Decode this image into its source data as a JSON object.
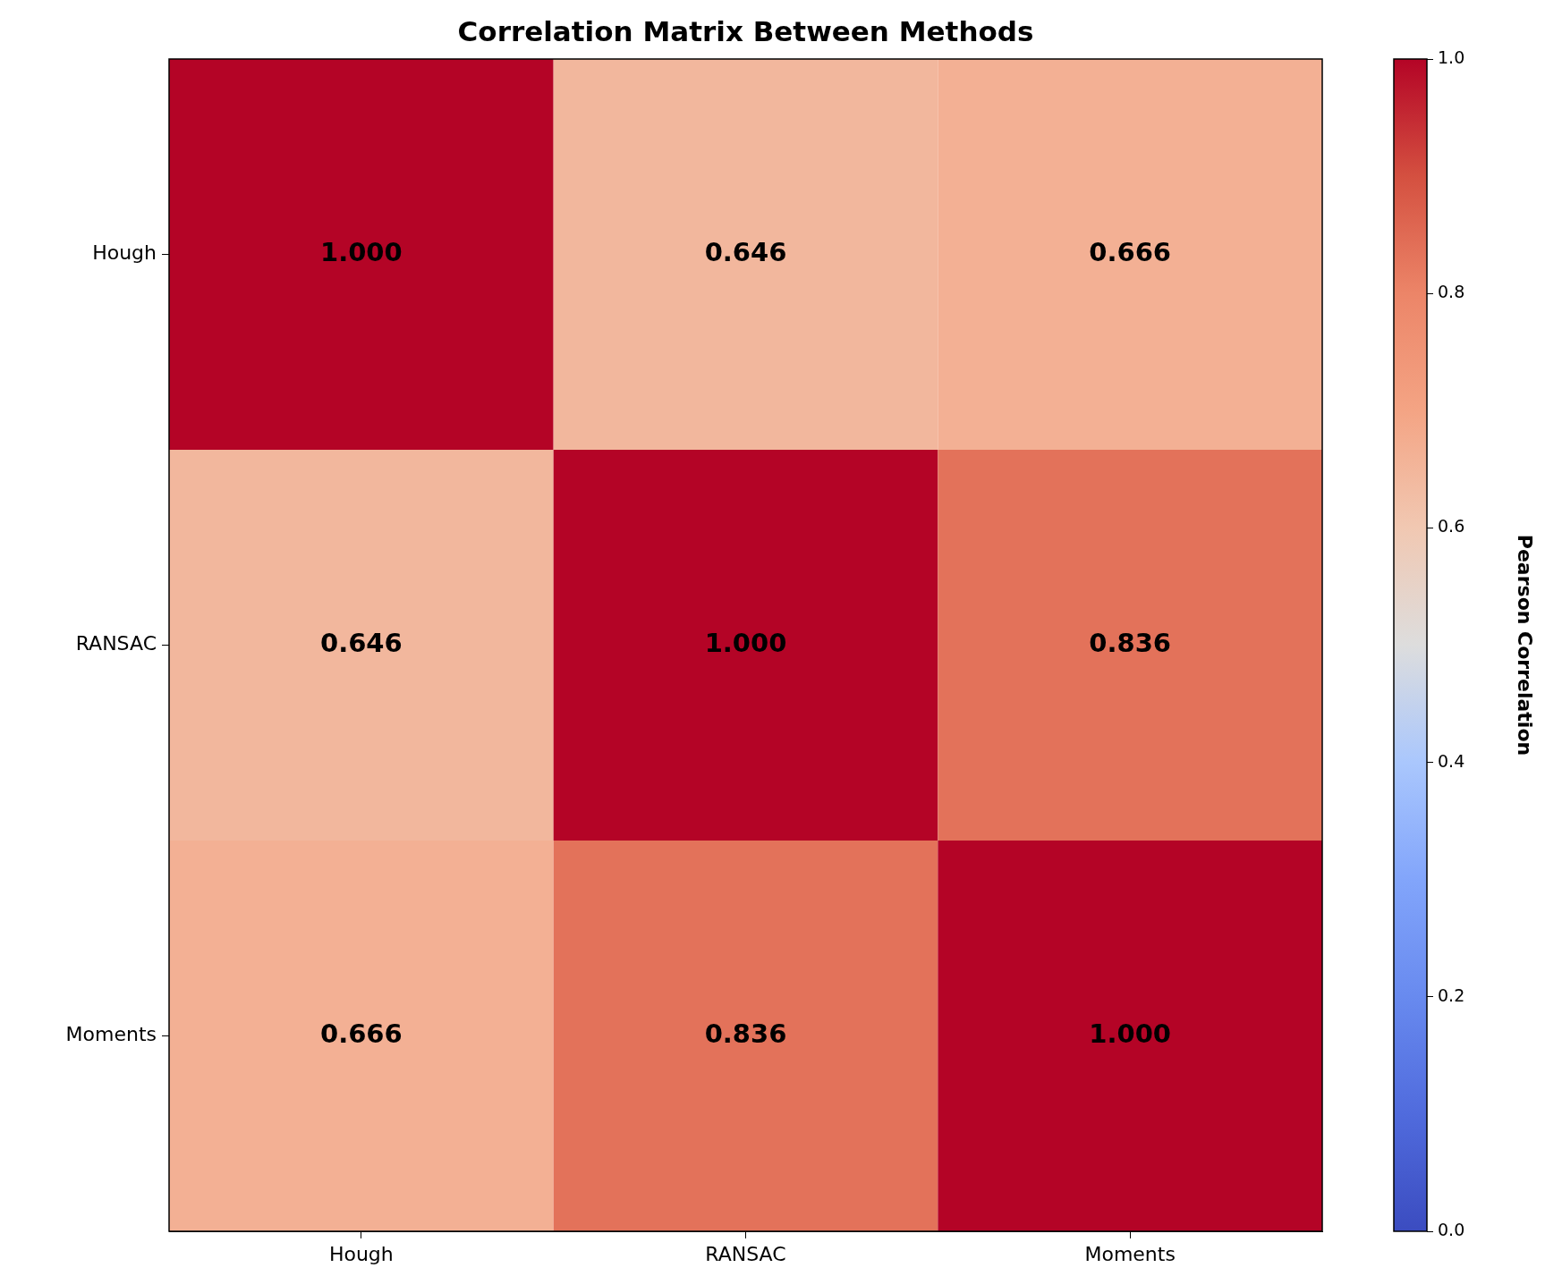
{
  "chart_data": {
    "type": "heatmap",
    "title": "Correlation Matrix Between Methods",
    "categories": [
      "Hough",
      "RANSAC",
      "Moments"
    ],
    "y_categories": [
      "Hough",
      "RANSAC",
      "Moments"
    ],
    "cells": [
      [
        1.0,
        0.646,
        0.666
      ],
      [
        0.646,
        1.0,
        0.836
      ],
      [
        0.666,
        0.836,
        1.0
      ]
    ],
    "cell_labels": [
      [
        "1.000",
        "0.646",
        "0.666"
      ],
      [
        "0.646",
        "1.000",
        "0.836"
      ],
      [
        "0.666",
        "0.836",
        "1.000"
      ]
    ],
    "clim": [
      0,
      1
    ],
    "cticks": [
      {
        "value": 0,
        "label": "0.0"
      },
      0.2,
      0.4,
      0.6,
      0.8,
      {
        "value": 1,
        "label": "1.0"
      }
    ],
    "clabel": "Pearson Correlation"
  }
}
